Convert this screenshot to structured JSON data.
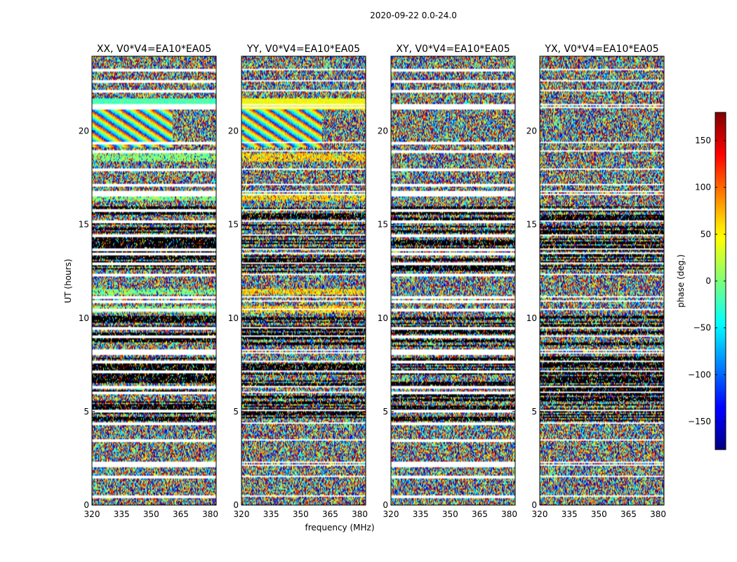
{
  "chart_data": {
    "type": "heatmap",
    "suptitle": "2020-09-22 0.0-24.0",
    "xlabel": "frequency (MHz)",
    "ylabel": "UT (hours)",
    "xlim": [
      320,
      383
    ],
    "ylim": [
      0,
      24
    ],
    "xticks": [
      320,
      335,
      350,
      365,
      380
    ],
    "yticks": [
      0,
      5,
      10,
      15,
      20
    ],
    "colormap": "jet",
    "colorbar": {
      "label": "phase (deg.)",
      "range": [
        -180,
        180
      ],
      "ticks": [
        150,
        100,
        50,
        0,
        -50,
        -100,
        -150
      ],
      "tick_labels": [
        "150",
        "100",
        "50",
        "0",
        "−50",
        "−100",
        "−150"
      ]
    },
    "panels": [
      {
        "title": "XX, V0*V4=EA10*EA05",
        "fringes": true,
        "phase_offset": 0
      },
      {
        "title": "YY, V0*V4=EA10*EA05",
        "fringes": true,
        "phase_offset": 60
      },
      {
        "title": "XY, V0*V4=EA10*EA05",
        "fringes": false,
        "phase_offset": 0
      },
      {
        "title": "YX, V0*V4=EA10*EA05",
        "fringes": false,
        "phase_offset": 0
      }
    ],
    "flagged_rows_hours": [
      0.55,
      1.55,
      2.2,
      2.3,
      3.5,
      4.4,
      5.1,
      6.05,
      6.4,
      7.2,
      7.7,
      8.2,
      8.3,
      9.1,
      9.5,
      10.5,
      10.95,
      11.2,
      12.4,
      12.95,
      13.5,
      13.7,
      14.5,
      15.25,
      15.85,
      16.65,
      16.8,
      17.2,
      18.0,
      19.0,
      19.4,
      21.3,
      21.45,
      22.2,
      22.7,
      23.3
    ]
  }
}
